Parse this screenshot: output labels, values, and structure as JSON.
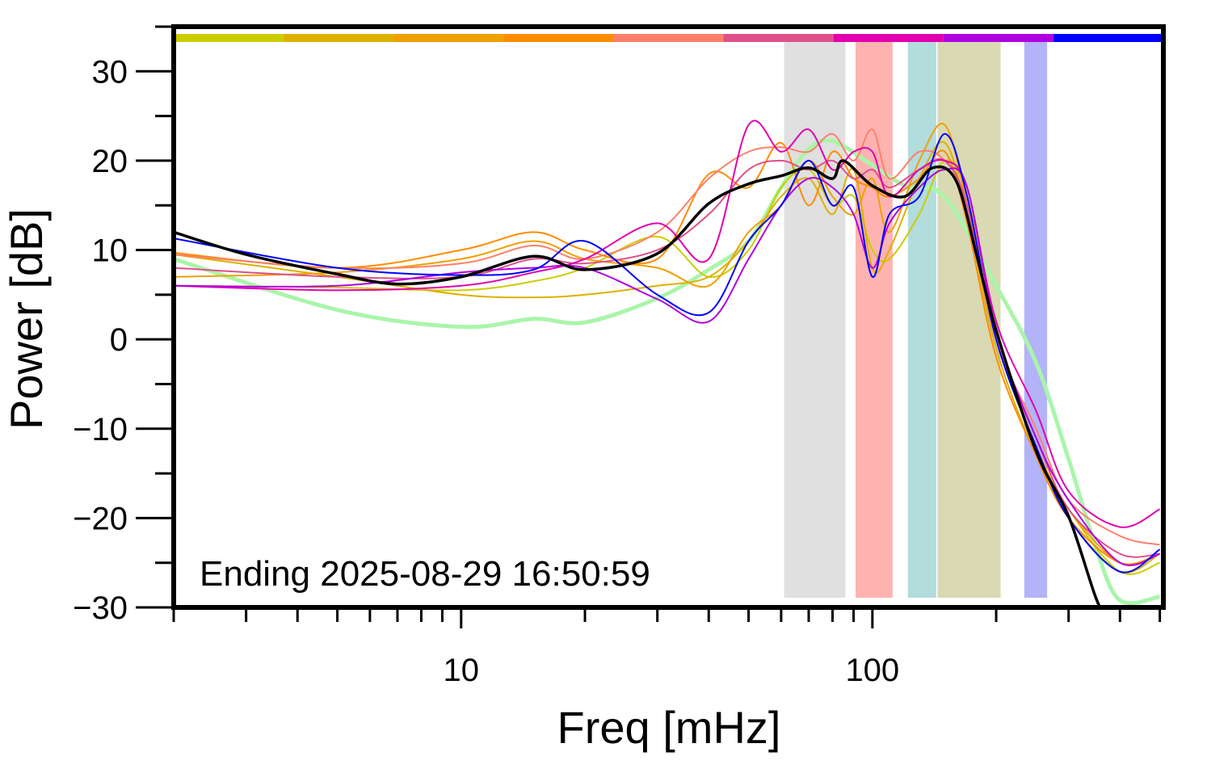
{
  "chart_data": {
    "type": "line",
    "title": "",
    "xlabel": "Freq [mHz]",
    "ylabel": "Power [dB]",
    "xscale": "log",
    "xlim": [
      2,
      510
    ],
    "ylim": [
      -30,
      35
    ],
    "x_tick_labels": [
      {
        "value": 10,
        "label": "10"
      },
      {
        "value": 100,
        "label": "100"
      }
    ],
    "y_tick_labels": [
      {
        "value": 30,
        "label": "30"
      },
      {
        "value": 20,
        "label": "20"
      },
      {
        "value": 10,
        "label": "10"
      },
      {
        "value": 0,
        "label": "0"
      },
      {
        "value": -10,
        "label": "−10"
      },
      {
        "value": -20,
        "label": "−20"
      },
      {
        "value": -30,
        "label": "−30"
      }
    ],
    "grid": false,
    "annotation": "Ending 2025-08-29 16:50:59",
    "color_bar": [
      "#cccc00",
      "#ddb000",
      "#f0a000",
      "#ff8c00",
      "#ff7f6a",
      "#e0508a",
      "#e000b0",
      "#b000e0",
      "#0000ff"
    ],
    "bands": [
      {
        "from": 61,
        "to": 86,
        "color": "#e0e0e0"
      },
      {
        "from": 91,
        "to": 112,
        "color": "#ffb3b0"
      },
      {
        "from": 122,
        "to": 143,
        "color": "#b3dcdc"
      },
      {
        "from": 144,
        "to": 205,
        "color": "#d9d9b3"
      },
      {
        "from": 234,
        "to": 266,
        "color": "#b3b3f8"
      }
    ],
    "x": [
      2,
      5,
      10,
      15,
      20,
      30,
      40,
      50,
      60,
      70,
      80,
      90,
      100,
      110,
      130,
      150,
      170,
      200,
      250,
      300,
      400,
      500
    ],
    "series": [
      {
        "color": "#cccc00",
        "values": [
          6,
          5.8,
          5.5,
          6.5,
          8,
          11.5,
          7,
          10,
          17,
          19,
          15,
          16,
          10,
          9,
          14,
          20,
          16,
          0,
          -12,
          -19,
          -26,
          -25
        ]
      },
      {
        "color": "#ddb000",
        "values": [
          9.5,
          7,
          5,
          4.7,
          5,
          6,
          7,
          11,
          16,
          18,
          14,
          19,
          8,
          10,
          18,
          22,
          14,
          -1,
          -13,
          -20,
          -26,
          -24
        ]
      },
      {
        "color": "#f0a000",
        "values": [
          7,
          7.5,
          9,
          11,
          9,
          8,
          6,
          12,
          15,
          20,
          16,
          14,
          18,
          12,
          20,
          24,
          15,
          0,
          -12,
          -19,
          -25,
          -24
        ]
      },
      {
        "color": "#ff8c00",
        "values": [
          9.7,
          8,
          10,
          12,
          10,
          9,
          18.5,
          17,
          22,
          15,
          21,
          18,
          17,
          16,
          18,
          21,
          13,
          -2,
          -13,
          -20,
          -25,
          -24
        ]
      },
      {
        "color": "#ff7f6a",
        "values": [
          9.5,
          8,
          8.5,
          10.5,
          9,
          12,
          18,
          21,
          21.5,
          21,
          23,
          20,
          23.5,
          18,
          21,
          20,
          15,
          0,
          -10,
          -18,
          -22,
          -23
        ]
      },
      {
        "color": "#e0508a",
        "values": [
          8,
          7,
          7,
          9,
          8.5,
          10,
          14,
          19,
          20,
          19,
          20,
          18,
          19,
          17,
          19,
          20,
          15,
          0,
          -11,
          -19,
          -24,
          -24
        ]
      },
      {
        "color": "#e000b0",
        "values": [
          6,
          5.5,
          6,
          7.5,
          9,
          13,
          9,
          24,
          21,
          23.5,
          19,
          21,
          21,
          16,
          19,
          20,
          17,
          2,
          -8,
          -17,
          -21,
          -19
        ]
      },
      {
        "color": "#b000e0",
        "values": [
          6,
          6,
          7.5,
          8,
          8,
          4.5,
          2,
          9,
          15,
          18,
          17,
          14,
          8,
          13,
          17,
          19,
          17,
          1,
          -11,
          -18,
          -25,
          -24
        ]
      },
      {
        "color": "#0000ff",
        "values": [
          11.3,
          8,
          7.2,
          7.8,
          11,
          5,
          3,
          11,
          15,
          20,
          15,
          17,
          7,
          14,
          16,
          23,
          16,
          0,
          -12,
          -20,
          -26,
          -23.5
        ]
      }
    ],
    "mean_series": {
      "color": "#000000",
      "x": [
        2,
        3,
        5,
        7,
        10,
        15,
        20,
        30,
        40,
        50,
        60,
        70,
        80,
        85,
        100,
        120,
        140,
        160,
        180,
        200,
        250,
        300,
        350,
        380
      ],
      "values": [
        12,
        9.5,
        7.3,
        6.2,
        7,
        9.3,
        7.8,
        9.6,
        15.2,
        17.4,
        18.3,
        19.2,
        18,
        20,
        17.2,
        16,
        19.2,
        17.7,
        9.1,
        1,
        -12.5,
        -19.8,
        -29,
        -32
      ]
    },
    "reference_series": {
      "color": "#aaf5aa",
      "x": [
        2,
        5,
        10,
        15,
        20,
        30,
        40,
        50,
        60,
        70,
        80,
        100,
        120,
        150,
        200,
        250,
        300,
        350,
        400,
        500
      ],
      "values": [
        9,
        3.3,
        1.4,
        2.3,
        1.9,
        4.6,
        7.8,
        11,
        17,
        21.3,
        22.2,
        19.5,
        17.2,
        15.9,
        6,
        -2.6,
        -13.4,
        -23.4,
        -29.2,
        -28.8
      ]
    }
  }
}
